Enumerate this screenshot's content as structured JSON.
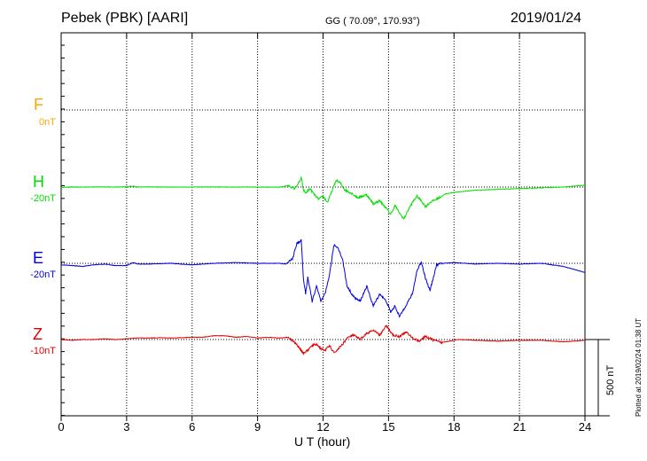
{
  "header": {
    "station": "Pebek (PBK)  [AARI]",
    "coords": "GG ( 70.09°, 170.93°)",
    "date": "2019/01/24"
  },
  "scale_label": "500 nT",
  "plotted_note": "Plotted at 2019/02/24 01:38 UT",
  "colors": {
    "F": "#ffa500",
    "H": "#00e000",
    "E": "#0000e0",
    "Z": "#e00000",
    "axis": "#000000"
  },
  "chart_data": {
    "type": "line",
    "xlabel": "U T (hour)",
    "xlim": [
      0,
      24
    ],
    "xticks": [
      "0",
      "3",
      "6",
      "9",
      "12",
      "15",
      "18",
      "21",
      "24"
    ],
    "grid": true,
    "scale_nT": 500,
    "channels": [
      {
        "name": "F",
        "offset": "0nT"
      },
      {
        "name": "H",
        "offset": "-20nT"
      },
      {
        "name": "E",
        "offset": "-20nT"
      },
      {
        "name": "Z",
        "offset": "-10nT"
      }
    ],
    "series": [
      {
        "name": "H",
        "x": [
          0,
          0.5,
          1,
          1.5,
          2,
          2.5,
          3,
          3.3,
          3.5,
          4,
          5,
          6,
          7,
          8,
          9,
          10,
          10.4,
          10.7,
          10.9,
          11.0,
          11.1,
          11.2,
          11.4,
          11.6,
          11.8,
          12.0,
          12.2,
          12.4,
          12.6,
          12.8,
          13.0,
          13.3,
          13.6,
          14.0,
          14.3,
          14.6,
          14.9,
          15.1,
          15.3,
          15.5,
          15.7,
          15.9,
          16.1,
          16.3,
          16.5,
          16.7,
          16.9,
          17.2,
          17.6,
          18,
          19,
          20,
          21,
          22,
          23,
          24
        ],
        "y": [
          -2,
          0,
          0,
          1,
          1,
          0,
          2,
          7,
          0,
          1,
          0,
          0,
          1,
          0,
          0,
          -1,
          10,
          -10,
          30,
          60,
          -20,
          -40,
          -10,
          -50,
          -80,
          -60,
          -100,
          -30,
          45,
          25,
          -20,
          -40,
          -70,
          -50,
          -110,
          -90,
          -140,
          -180,
          -120,
          -170,
          -210,
          -150,
          -100,
          -60,
          -90,
          -130,
          -100,
          -80,
          -45,
          -35,
          -20,
          -15,
          -10,
          -5,
          0,
          12
        ]
      },
      {
        "name": "E",
        "x": [
          0,
          0.5,
          1,
          1.5,
          2,
          2.5,
          3,
          3.3,
          3.5,
          4,
          5,
          6,
          7,
          8,
          9,
          10,
          10.3,
          10.6,
          10.8,
          11.0,
          11.1,
          11.2,
          11.3,
          11.5,
          11.7,
          11.9,
          12.1,
          12.3,
          12.5,
          12.7,
          12.9,
          13.1,
          13.4,
          13.7,
          14.0,
          14.3,
          14.6,
          14.9,
          15.1,
          15.3,
          15.5,
          15.7,
          15.9,
          16.1,
          16.3,
          16.5,
          16.7,
          16.9,
          17.2,
          17.5,
          18,
          19,
          20,
          21,
          22,
          23,
          24
        ],
        "y": [
          -10,
          -15,
          -20,
          -10,
          -5,
          -15,
          -15,
          5,
          -5,
          -5,
          0,
          -10,
          0,
          5,
          0,
          0,
          -5,
          30,
          130,
          150,
          -100,
          -200,
          -90,
          -250,
          -150,
          -250,
          -200,
          -70,
          120,
          100,
          20,
          -150,
          -220,
          -250,
          -150,
          -280,
          -200,
          -250,
          -320,
          -280,
          -350,
          -300,
          -250,
          -200,
          -50,
          10,
          -100,
          -180,
          -10,
          0,
          5,
          -5,
          0,
          -5,
          0,
          -20,
          -60
        ]
      },
      {
        "name": "Z",
        "x": [
          0,
          0.5,
          1,
          1.5,
          2,
          2.5,
          3,
          3.5,
          4,
          4.5,
          5,
          5.5,
          6,
          6.5,
          7,
          7.5,
          8,
          8.5,
          9,
          9.5,
          10,
          10.4,
          10.7,
          10.9,
          11.1,
          11.3,
          11.5,
          11.7,
          11.9,
          12.1,
          12.3,
          12.5,
          12.7,
          12.9,
          13.1,
          13.4,
          13.7,
          14.0,
          14.3,
          14.6,
          14.9,
          15.2,
          15.5,
          15.8,
          16.1,
          16.4,
          16.7,
          17.0,
          17.4,
          17.8,
          18.2,
          19,
          20,
          21,
          22,
          23,
          24
        ],
        "y": [
          0,
          -5,
          0,
          0,
          5,
          0,
          5,
          10,
          10,
          12,
          10,
          12,
          15,
          15,
          25,
          25,
          15,
          20,
          10,
          15,
          10,
          15,
          -20,
          -50,
          -90,
          -70,
          -40,
          -30,
          -60,
          -70,
          -40,
          -90,
          -60,
          -30,
          10,
          30,
          0,
          40,
          60,
          30,
          90,
          30,
          20,
          50,
          10,
          -10,
          20,
          0,
          -20,
          -10,
          0,
          -5,
          -10,
          -5,
          -5,
          -15,
          -5
        ]
      }
    ]
  }
}
